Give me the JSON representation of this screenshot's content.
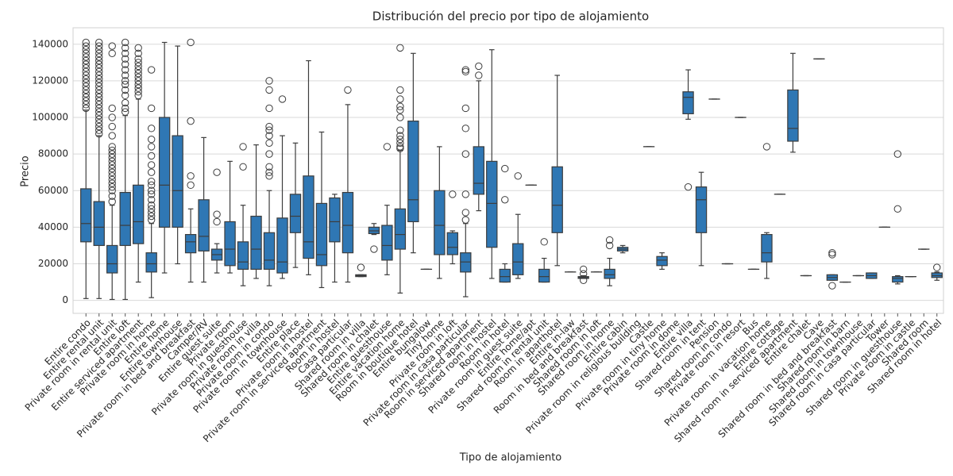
{
  "chart_data": {
    "type": "box",
    "title": "Distribución del precio por tipo de alojamiento",
    "xlabel": "Tipo de alojamiento",
    "ylabel": "Precio",
    "color": "#2f77b4",
    "grid": true,
    "ylim": [
      -7100,
      149000
    ],
    "yticks": [
      0,
      20000,
      40000,
      60000,
      80000,
      100000,
      120000,
      140000
    ],
    "categories": [
      "Entire condo",
      "Entire rental unit",
      "Private room in rental unit",
      "Entire loft",
      "Entire serviced apartment",
      "Private room in home",
      "Entire home",
      "Entire townhouse",
      "Private room in bed and breakfast",
      "Camper/RV",
      "Entire guest suite",
      "Private room",
      "Private room in guesthouse",
      "Private room in villa",
      "Private room in condo",
      "Private room in townhouse",
      "Entire place",
      "Private room in hostel",
      "Private room in serviced apartment",
      "Room in hostel",
      "Casa particular",
      "Shared room in villa",
      "Shared room in chalet",
      "Entire guesthouse",
      "Entire vacation home",
      "Room in boutique hotel",
      "Entire bungalow",
      "Tiny home",
      "Private room in loft",
      "Private room in casa particular",
      "Room in serviced apartment",
      "Shared room in hostel",
      "Room in hotel",
      "Private room in guest suite",
      "Entire home/apt",
      "Shared room in rental unit",
      "Room in aparthotel",
      "Entire in-law",
      "Room in bed and breakfast",
      "Shared room in loft",
      "Shared room in home",
      "Entire cabin",
      "Private room in religious building",
      "Castle",
      "Private room in tiny home",
      "Private room in dome",
      "Entire villa",
      "Shared room in tent",
      "Pension",
      "Shared room in condo",
      "Private room in resort",
      "Bus",
      "Private room in vacation home",
      "Entire cottage",
      "Shared room in serviced apartment",
      "Entire chalet",
      "Cave",
      "Shared room in bed and breakfast",
      "Shared room in barn",
      "Shared room in townhouse",
      "Shared room in casa particular",
      "Tower",
      "Shared room in guesthouse",
      "Private room in castle",
      "Shared room",
      "Shared room in hotel"
    ],
    "boxes": [
      {
        "whislo": 1000,
        "q1": 32000,
        "med": 42000,
        "q3": 61000,
        "whishi": 104000,
        "fliers": [
          105000,
          107000,
          109000,
          111000,
          113000,
          115000,
          117000,
          119000,
          121000,
          123000,
          125000,
          127000,
          129000,
          131000,
          133000,
          135000,
          137000,
          139000,
          141000
        ]
      },
      {
        "whislo": 1000,
        "q1": 30000,
        "med": 40000,
        "q3": 54000,
        "whishi": 90000,
        "fliers": [
          91000,
          93000,
          95000,
          97000,
          99000,
          101000,
          103000,
          105000,
          107000,
          109000,
          111000,
          113000,
          115000,
          117000,
          119000,
          121000,
          123000,
          125000,
          127000,
          129000,
          131000,
          133000,
          135000,
          137000,
          139000,
          141000
        ]
      },
      {
        "whislo": 500,
        "q1": 15000,
        "med": 20000,
        "q3": 30000,
        "whishi": 52000,
        "fliers": [
          54000,
          57000,
          60000,
          62000,
          64000,
          66000,
          68000,
          70000,
          72000,
          74000,
          76000,
          78000,
          80000,
          82000,
          84000,
          90000,
          95000,
          100000,
          105000,
          135000,
          139000
        ]
      },
      {
        "whislo": 500,
        "q1": 30000,
        "med": 41000,
        "q3": 59000,
        "whishi": 101000,
        "fliers": [
          103000,
          105000,
          108000,
          112000,
          115000,
          118000,
          120000,
          123000,
          126000,
          129000,
          132000,
          135000,
          138000,
          141000
        ]
      },
      {
        "whislo": 10000,
        "q1": 31000,
        "med": 43000,
        "q3": 63000,
        "whishi": 110000,
        "fliers": [
          112000,
          114000,
          116000,
          118000,
          120000,
          122000,
          124000,
          126000,
          128000,
          130000,
          132000,
          135000,
          138000
        ]
      },
      {
        "whislo": 1500,
        "q1": 15500,
        "med": 20000,
        "q3": 26000,
        "whishi": 42000,
        "fliers": [
          44000,
          46000,
          48000,
          50000,
          52000,
          55000,
          58000,
          60000,
          63000,
          65000,
          70000,
          74000,
          79000,
          84000,
          88000,
          94000,
          105000,
          126000
        ]
      },
      {
        "whislo": 15000,
        "q1": 40000,
        "med": 63000,
        "q3": 100000,
        "whishi": 141000,
        "fliers": []
      },
      {
        "whislo": 20000,
        "q1": 40000,
        "med": 60000,
        "q3": 90000,
        "whishi": 139000,
        "fliers": []
      },
      {
        "whislo": 10000,
        "q1": 26000,
        "med": 32000,
        "q3": 36000,
        "whishi": 50000,
        "fliers": [
          63000,
          68000,
          98000,
          141000
        ]
      },
      {
        "whislo": 10000,
        "q1": 27000,
        "med": 35000,
        "q3": 55000,
        "whishi": 89000,
        "fliers": []
      },
      {
        "whislo": 15000,
        "q1": 22000,
        "med": 25000,
        "q3": 28000,
        "whishi": 31000,
        "fliers": [
          43000,
          47000,
          70000
        ]
      },
      {
        "whislo": 15000,
        "q1": 19000,
        "med": 28000,
        "q3": 43000,
        "whishi": 76000,
        "fliers": []
      },
      {
        "whislo": 8000,
        "q1": 17000,
        "med": 21000,
        "q3": 32000,
        "whishi": 52000,
        "fliers": [
          73000,
          84000
        ]
      },
      {
        "whislo": 12000,
        "q1": 17000,
        "med": 28000,
        "q3": 46000,
        "whishi": 85000,
        "fliers": []
      },
      {
        "whislo": 8000,
        "q1": 17000,
        "med": 22000,
        "q3": 37000,
        "whishi": 60000,
        "fliers": [
          68000,
          70000,
          73000,
          80000,
          86000,
          90000,
          93000,
          95000,
          105000,
          115000,
          120000
        ]
      },
      {
        "whislo": 12000,
        "q1": 15000,
        "med": 21000,
        "q3": 45000,
        "whishi": 90000,
        "fliers": [
          110000
        ]
      },
      {
        "whislo": 18000,
        "q1": 37000,
        "med": 46000,
        "q3": 58000,
        "whishi": 86000,
        "fliers": []
      },
      {
        "whislo": 14000,
        "q1": 23000,
        "med": 32000,
        "q3": 68000,
        "whishi": 131000,
        "fliers": []
      },
      {
        "whislo": 7000,
        "q1": 19000,
        "med": 25000,
        "q3": 53000,
        "whishi": 92000,
        "fliers": []
      },
      {
        "whislo": 10000,
        "q1": 32000,
        "med": 43000,
        "q3": 56000,
        "whishi": 58000,
        "fliers": []
      },
      {
        "whislo": 10000,
        "q1": 26000,
        "med": 41000,
        "q3": 59000,
        "whishi": 107000,
        "fliers": [
          115000
        ]
      },
      {
        "whislo": 13000,
        "q1": 13000,
        "med": 13500,
        "q3": 14000,
        "whishi": 14000,
        "fliers": [
          18000
        ]
      },
      {
        "whislo": 36000,
        "q1": 36500,
        "med": 38000,
        "q3": 40000,
        "whishi": 42000,
        "fliers": [
          28000
        ]
      },
      {
        "whislo": 14000,
        "q1": 22000,
        "med": 30000,
        "q3": 41000,
        "whishi": 52000,
        "fliers": [
          84000
        ]
      },
      {
        "whislo": 4000,
        "q1": 28000,
        "med": 36000,
        "q3": 50000,
        "whishi": 82000,
        "fliers": [
          83000,
          84000,
          86000,
          88000,
          90000,
          93000,
          100000,
          104000,
          106000,
          110000,
          115000,
          138000
        ]
      },
      {
        "whislo": 26000,
        "q1": 43000,
        "med": 55000,
        "q3": 98000,
        "whishi": 135000,
        "fliers": []
      },
      {
        "whislo": 17000,
        "q1": 17000,
        "med": 17000,
        "q3": 17000,
        "whishi": 17000,
        "fliers": []
      },
      {
        "whislo": 12000,
        "q1": 25000,
        "med": 41000,
        "q3": 60000,
        "whishi": 84000,
        "fliers": []
      },
      {
        "whislo": 20000,
        "q1": 25000,
        "med": 29000,
        "q3": 37000,
        "whishi": 38000,
        "fliers": [
          58000
        ]
      },
      {
        "whislo": 2000,
        "q1": 15500,
        "med": 21000,
        "q3": 26000,
        "whishi": 42000,
        "fliers": [
          44000,
          48000,
          58000,
          80000,
          94000,
          105000,
          125000,
          126000
        ]
      },
      {
        "whislo": 49000,
        "q1": 58000,
        "med": 64000,
        "q3": 84000,
        "whishi": 120000,
        "fliers": [
          123000,
          128000
        ]
      },
      {
        "whislo": 12000,
        "q1": 29000,
        "med": 53000,
        "q3": 76000,
        "whishi": 137000,
        "fliers": []
      },
      {
        "whislo": 10000,
        "q1": 10000,
        "med": 13000,
        "q3": 17000,
        "whishi": 20000,
        "fliers": [
          55000,
          72000
        ]
      },
      {
        "whislo": 12000,
        "q1": 14000,
        "med": 21000,
        "q3": 31000,
        "whishi": 47000,
        "fliers": [
          68000
        ]
      },
      {
        "whislo": 63000,
        "q1": 63000,
        "med": 63000,
        "q3": 63000,
        "whishi": 63000,
        "fliers": []
      },
      {
        "whislo": 10000,
        "q1": 10000,
        "med": 13000,
        "q3": 17000,
        "whishi": 23000,
        "fliers": [
          32000
        ]
      },
      {
        "whislo": 19000,
        "q1": 37000,
        "med": 52000,
        "q3": 73000,
        "whishi": 123000,
        "fliers": []
      },
      {
        "whislo": 15500,
        "q1": 15500,
        "med": 15500,
        "q3": 15500,
        "whishi": 15500,
        "fliers": []
      },
      {
        "whislo": 12000,
        "q1": 12000,
        "med": 12500,
        "q3": 13000,
        "whishi": 13500,
        "fliers": [
          11000,
          14500,
          17000
        ]
      },
      {
        "whislo": 15500,
        "q1": 15500,
        "med": 15500,
        "q3": 15500,
        "whishi": 15500,
        "fliers": []
      },
      {
        "whislo": 8000,
        "q1": 12000,
        "med": 14000,
        "q3": 17000,
        "whishi": 23000,
        "fliers": [
          30000,
          33000
        ]
      },
      {
        "whislo": 26000,
        "q1": 27000,
        "med": 28000,
        "q3": 29000,
        "whishi": 30000,
        "fliers": []
      },
      null,
      {
        "whislo": 84000,
        "q1": 84000,
        "med": 84000,
        "q3": 84000,
        "whishi": 84000,
        "fliers": []
      },
      {
        "whislo": 17000,
        "q1": 19000,
        "med": 22000,
        "q3": 24000,
        "whishi": 26000,
        "fliers": []
      },
      null,
      {
        "whislo": 99000,
        "q1": 102000,
        "med": 111000,
        "q3": 114000,
        "whishi": 126000,
        "fliers": [
          62000
        ]
      },
      {
        "whislo": 19000,
        "q1": 37000,
        "med": 55000,
        "q3": 62000,
        "whishi": 70000,
        "fliers": []
      },
      {
        "whislo": 110000,
        "q1": 110000,
        "med": 110000,
        "q3": 110000,
        "whishi": 110000,
        "fliers": []
      },
      {
        "whislo": 20000,
        "q1": 20000,
        "med": 20000,
        "q3": 20000,
        "whishi": 20000,
        "fliers": []
      },
      {
        "whislo": 100000,
        "q1": 100000,
        "med": 100000,
        "q3": 100000,
        "whishi": 100000,
        "fliers": []
      },
      {
        "whislo": 17000,
        "q1": 17000,
        "med": 17000,
        "q3": 17000,
        "whishi": 17000,
        "fliers": []
      },
      {
        "whislo": 12000,
        "q1": 21000,
        "med": 26000,
        "q3": 36000,
        "whishi": 37000,
        "fliers": [
          84000
        ]
      },
      {
        "whislo": 58000,
        "q1": 58000,
        "med": 58000,
        "q3": 58000,
        "whishi": 58000,
        "fliers": []
      },
      {
        "whislo": 81000,
        "q1": 87000,
        "med": 94000,
        "q3": 115000,
        "whishi": 135000,
        "fliers": []
      },
      {
        "whislo": 13500,
        "q1": 13500,
        "med": 13500,
        "q3": 13500,
        "whishi": 13500,
        "fliers": []
      },
      {
        "whislo": 132000,
        "q1": 132000,
        "med": 132000,
        "q3": 132000,
        "whishi": 132000,
        "fliers": []
      },
      {
        "whislo": 11000,
        "q1": 11000,
        "med": 12500,
        "q3": 14000,
        "whishi": 14000,
        "fliers": [
          8000,
          25000,
          26000
        ]
      },
      {
        "whislo": 10000,
        "q1": 10000,
        "med": 10000,
        "q3": 10000,
        "whishi": 10000,
        "fliers": []
      },
      {
        "whislo": 13500,
        "q1": 13500,
        "med": 13500,
        "q3": 13500,
        "whishi": 13500,
        "fliers": []
      },
      {
        "whislo": 12000,
        "q1": 12000,
        "med": 13500,
        "q3": 15000,
        "whishi": 15000,
        "fliers": []
      },
      {
        "whislo": 40000,
        "q1": 40000,
        "med": 40000,
        "q3": 40000,
        "whishi": 40000,
        "fliers": []
      },
      {
        "whislo": 9000,
        "q1": 10000,
        "med": 12000,
        "q3": 13000,
        "whishi": 13500,
        "fliers": [
          50000,
          80000
        ]
      },
      {
        "whislo": 13000,
        "q1": 13000,
        "med": 13000,
        "q3": 13000,
        "whishi": 13000,
        "fliers": []
      },
      {
        "whislo": 28000,
        "q1": 28000,
        "med": 28000,
        "q3": 28000,
        "whishi": 28000,
        "fliers": []
      },
      {
        "whislo": 11000,
        "q1": 12500,
        "med": 13500,
        "q3": 15000,
        "whishi": 15500,
        "fliers": [
          18000
        ]
      }
    ]
  }
}
